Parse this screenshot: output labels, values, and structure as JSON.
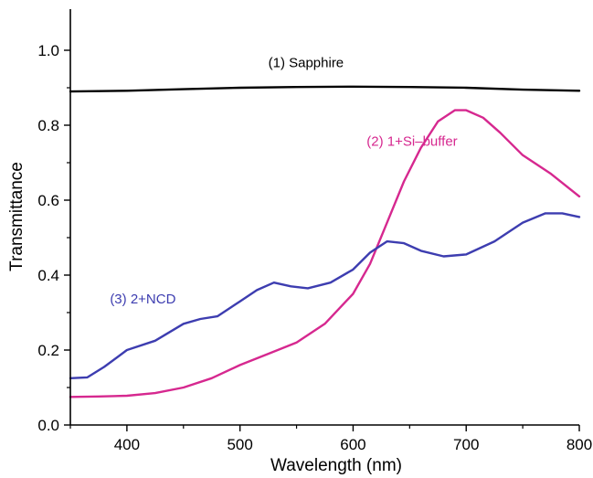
{
  "chart_data": {
    "type": "line",
    "title": "",
    "xlabel": "Wavelength (nm)",
    "ylabel": "Transmittance",
    "xlim": [
      350,
      800
    ],
    "ylim": [
      0.0,
      1.1
    ],
    "xticks": [
      400,
      500,
      600,
      700,
      800
    ],
    "xtick_labels": [
      "400",
      "500",
      "600",
      "700",
      "800"
    ],
    "yticks": [
      0.0,
      0.2,
      0.4,
      0.6,
      0.8,
      1.0
    ],
    "ytick_labels": [
      "0.0",
      "0.2",
      "0.4",
      "0.6",
      "0.8",
      "1.0"
    ],
    "grid": false,
    "series": [
      {
        "name": "(1) Sapphire",
        "color": "#000000",
        "x": [
          350,
          400,
          450,
          500,
          550,
          600,
          650,
          700,
          750,
          800
        ],
        "y": [
          0.89,
          0.892,
          0.896,
          0.9,
          0.902,
          0.903,
          0.902,
          0.9,
          0.895,
          0.892
        ]
      },
      {
        "name": "(2) 1+Si-buffer",
        "color": "#d6288f",
        "x": [
          350,
          375,
          400,
          425,
          450,
          475,
          500,
          525,
          550,
          575,
          600,
          615,
          630,
          645,
          660,
          675,
          690,
          700,
          715,
          730,
          750,
          775,
          800
        ],
        "y": [
          0.075,
          0.076,
          0.078,
          0.085,
          0.1,
          0.125,
          0.16,
          0.19,
          0.22,
          0.27,
          0.35,
          0.43,
          0.54,
          0.65,
          0.74,
          0.81,
          0.84,
          0.84,
          0.82,
          0.78,
          0.72,
          0.67,
          0.61
        ]
      },
      {
        "name": "(3) 2+NCD",
        "color": "#3d3db0",
        "x": [
          350,
          365,
          380,
          400,
          425,
          450,
          465,
          480,
          500,
          515,
          530,
          545,
          560,
          580,
          600,
          615,
          630,
          645,
          660,
          680,
          700,
          725,
          750,
          770,
          785,
          800
        ],
        "y": [
          0.125,
          0.127,
          0.155,
          0.2,
          0.225,
          0.27,
          0.283,
          0.29,
          0.33,
          0.36,
          0.38,
          0.37,
          0.365,
          0.38,
          0.415,
          0.46,
          0.49,
          0.485,
          0.465,
          0.45,
          0.455,
          0.49,
          0.54,
          0.565,
          0.565,
          0.555
        ]
      }
    ],
    "annotations": [
      {
        "text": "(1) Sapphire",
        "x": 525,
        "y": 0.955,
        "color": "#000000"
      },
      {
        "text": "(2) 1+Si–buffer",
        "x": 612,
        "y": 0.745,
        "color": "#d6288f"
      },
      {
        "text": "(3) 2+NCD",
        "x": 385,
        "y": 0.325,
        "color": "#3d3db0"
      }
    ]
  }
}
